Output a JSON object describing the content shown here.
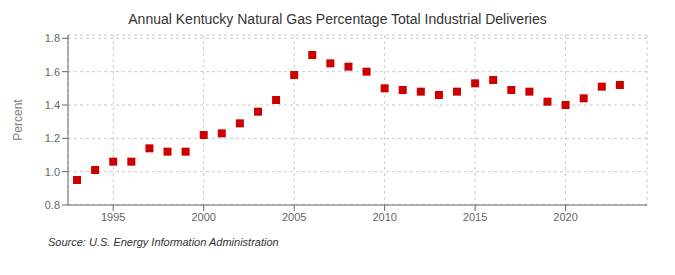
{
  "chart_data": {
    "type": "scatter",
    "title": "Annual Kentucky Natural Gas Percentage Total Industrial Deliveries",
    "ylabel": "Percent",
    "annotation": "Source: U.S. Energy Information Administration",
    "x": [
      1993,
      1994,
      1995,
      1996,
      1997,
      1998,
      1999,
      2000,
      2001,
      2002,
      2003,
      2004,
      2005,
      2006,
      2007,
      2008,
      2009,
      2010,
      2011,
      2012,
      2013,
      2014,
      2015,
      2016,
      2017,
      2018,
      2019,
      2020,
      2021,
      2022,
      2023
    ],
    "values": [
      0.95,
      1.01,
      1.06,
      1.06,
      1.14,
      1.12,
      1.12,
      1.22,
      1.23,
      1.29,
      1.36,
      1.43,
      1.58,
      1.7,
      1.65,
      1.63,
      1.6,
      1.5,
      1.49,
      1.48,
      1.46,
      1.48,
      1.53,
      1.55,
      1.49,
      1.48,
      1.42,
      1.4,
      1.44,
      1.51,
      1.52
    ],
    "xlim": [
      1992.5,
      2024.5
    ],
    "ylim": [
      0.8,
      1.82
    ],
    "xticks": [
      1995,
      2000,
      2005,
      2010,
      2015,
      2020
    ],
    "yticks": [
      0.8,
      {
        "value": 1.0,
        "label": "1.0"
      },
      1.2,
      1.4,
      1.6,
      1.8
    ],
    "color": "#cc0000",
    "marker": "square",
    "grid": true
  }
}
